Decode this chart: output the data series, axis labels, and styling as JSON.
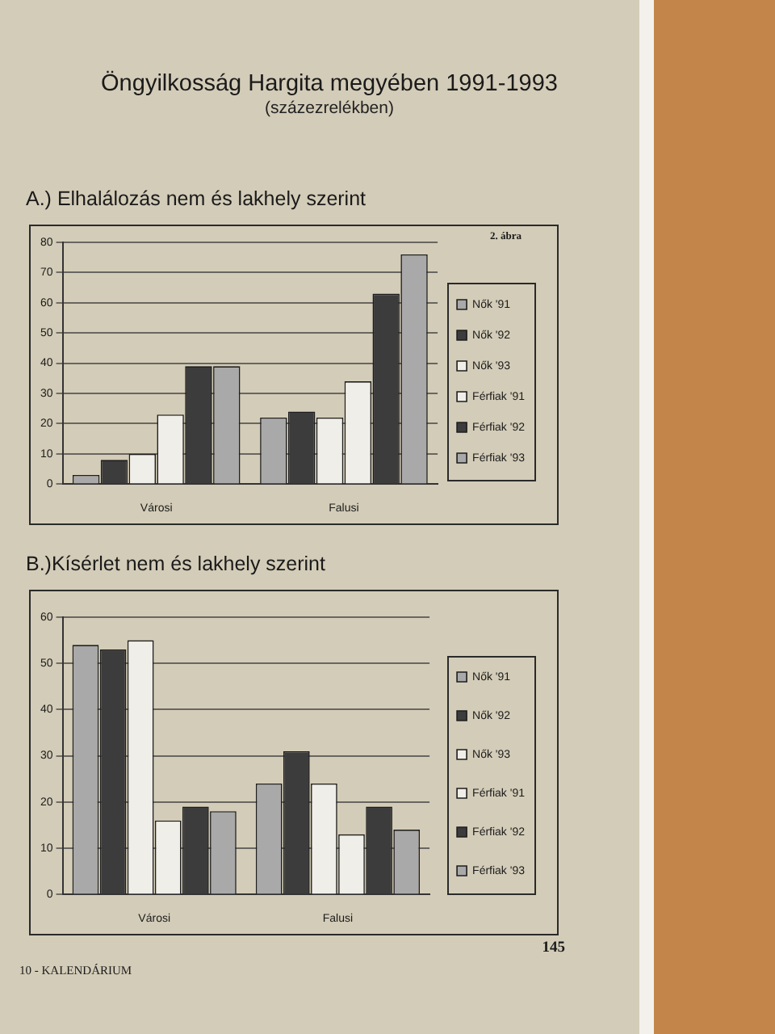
{
  "chart_data": [
    {
      "type": "other",
      "title": "Öngyilkosság Hargita megyében 1991-1993",
      "subtitle": "(százezrelékben)"
    },
    {
      "type": "bar",
      "title": "A.) Elhalálozás nem és lakhely szerint",
      "annotations": [
        "2. ábra"
      ],
      "categories": [
        "Városi",
        "Falusi"
      ],
      "series": [
        {
          "name": "Nők '91",
          "color": "#a9a9a9",
          "values": [
            3,
            22
          ]
        },
        {
          "name": "Nők '92",
          "color": "#3c3c3c",
          "values": [
            8,
            24
          ]
        },
        {
          "name": "Nők '93",
          "color": "#f0eee8",
          "values": [
            10,
            22
          ]
        },
        {
          "name": "Férfiak '91",
          "color": "#f0eee8",
          "values": [
            23,
            34
          ]
        },
        {
          "name": "Férfiak '92",
          "color": "#3c3c3c",
          "values": [
            39,
            63
          ]
        },
        {
          "name": "Férfiak '93",
          "color": "#a9a9a9",
          "values": [
            39,
            76
          ]
        }
      ],
      "ylim": [
        0,
        80
      ],
      "yticks": [
        0,
        10,
        20,
        30,
        40,
        50,
        60,
        70,
        80
      ],
      "grid": "y",
      "legend": "right"
    },
    {
      "type": "bar",
      "title": "B.)Kísérlet nem és lakhely szerint",
      "categories": [
        "Városi",
        "Falusi"
      ],
      "series": [
        {
          "name": "Nők '91",
          "color": "#a9a9a9",
          "values": [
            54,
            24
          ]
        },
        {
          "name": "Nők '92",
          "color": "#3c3c3c",
          "values": [
            53,
            31
          ]
        },
        {
          "name": "Nők '93",
          "color": "#f0eee8",
          "values": [
            55,
            24
          ]
        },
        {
          "name": "Férfiak '91",
          "color": "#f0eee8",
          "values": [
            16,
            13
          ]
        },
        {
          "name": "Férfiak '92",
          "color": "#3c3c3c",
          "values": [
            19,
            19
          ]
        },
        {
          "name": "Férfiak '93",
          "color": "#a9a9a9",
          "values": [
            18,
            14
          ]
        }
      ],
      "ylim": [
        0,
        60
      ],
      "yticks": [
        0,
        10,
        20,
        30,
        40,
        50,
        60
      ],
      "grid": "y",
      "legend": "right"
    },
    {
      "type": "other",
      "annotations": [
        "145",
        "10 - KALENDÁRIUM"
      ]
    }
  ]
}
